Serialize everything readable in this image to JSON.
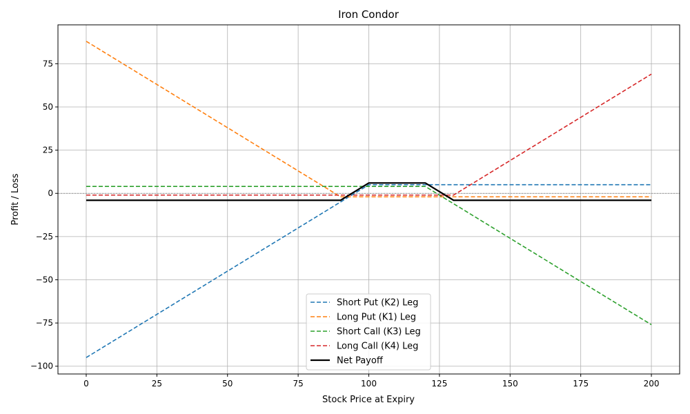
{
  "chart_data": {
    "type": "line",
    "title": "Iron Condor",
    "xlabel": "Stock Price at Expiry",
    "ylabel": "Profit / Loss",
    "xlim": [
      -10,
      210
    ],
    "ylim": [
      -104.5,
      97.5
    ],
    "x_ticks": [
      0,
      25,
      50,
      75,
      100,
      125,
      150,
      175,
      200
    ],
    "y_ticks": [
      -100,
      -75,
      -50,
      -25,
      0,
      25,
      50,
      75
    ],
    "grid": true,
    "zero_line": true,
    "legend_position": "lower-center",
    "series": [
      {
        "name": "Short Put (K2) Leg",
        "color": "#1f77b4",
        "style": "dashed",
        "x": [
          0,
          100,
          200
        ],
        "y": [
          -95,
          5,
          5
        ]
      },
      {
        "name": "Long Put (K1) Leg",
        "color": "#ff7f0e",
        "style": "dashed",
        "x": [
          0,
          90,
          200
        ],
        "y": [
          88,
          -2,
          -2
        ]
      },
      {
        "name": "Short Call (K3) Leg",
        "color": "#2ca02c",
        "style": "dashed",
        "x": [
          0,
          120,
          200
        ],
        "y": [
          4,
          4,
          -76
        ]
      },
      {
        "name": "Long Call (K4) Leg",
        "color": "#d62728",
        "style": "dashed",
        "x": [
          0,
          130,
          200
        ],
        "y": [
          -1,
          -1,
          69
        ]
      },
      {
        "name": "Net Payoff",
        "color": "#000000",
        "style": "solid",
        "x": [
          0,
          90,
          100,
          120,
          130,
          200
        ],
        "y": [
          -4,
          -4,
          6,
          6,
          -4,
          -4
        ]
      }
    ]
  }
}
